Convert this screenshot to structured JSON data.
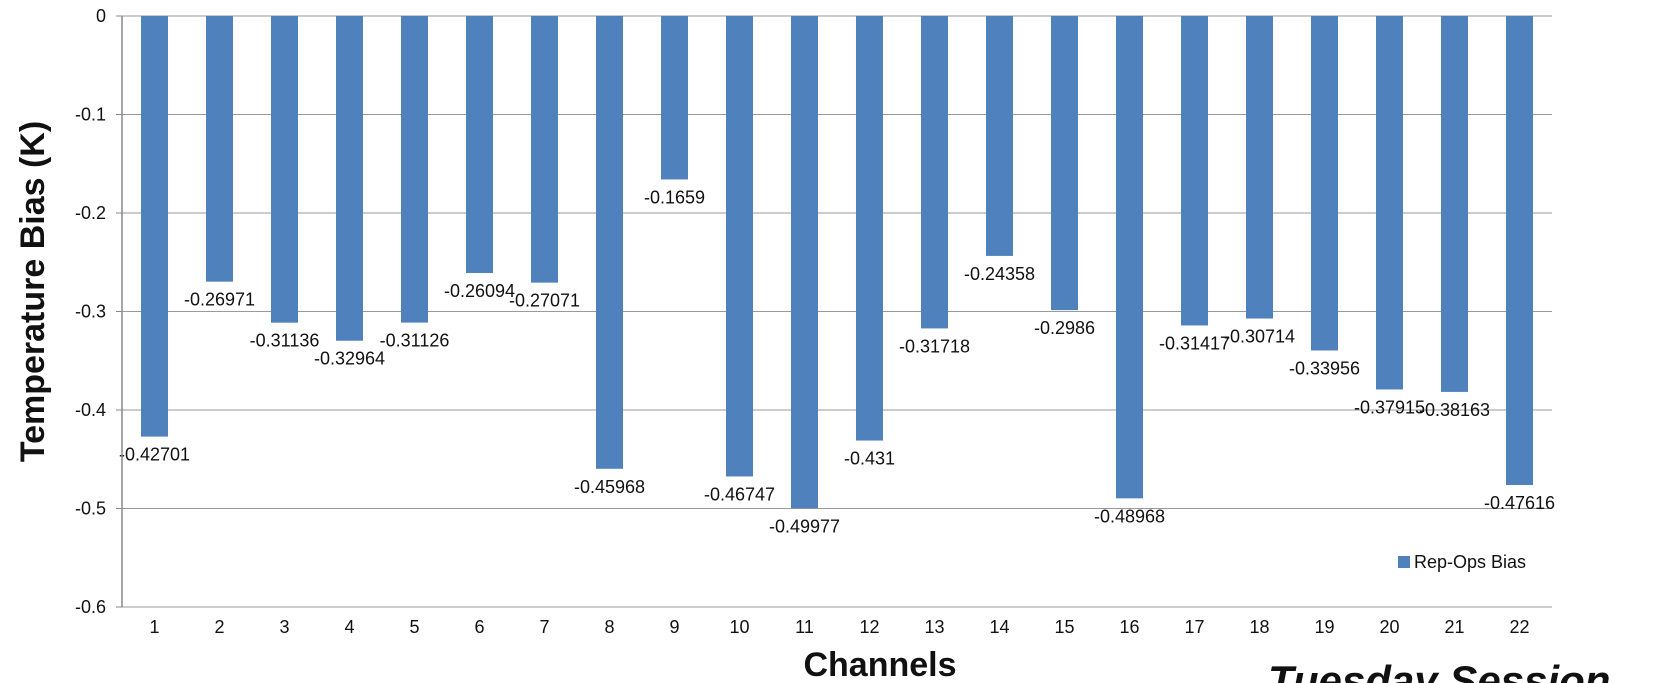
{
  "chart_data": {
    "type": "bar",
    "categories": [
      "1",
      "2",
      "3",
      "4",
      "5",
      "6",
      "7",
      "8",
      "9",
      "10",
      "11",
      "12",
      "13",
      "14",
      "15",
      "16",
      "17",
      "18",
      "19",
      "20",
      "21",
      "22"
    ],
    "series": [
      {
        "name": "Rep-Ops Bias",
        "values": [
          -0.42701,
          -0.26971,
          -0.31136,
          -0.32964,
          -0.31126,
          -0.26094,
          -0.27071,
          -0.45968,
          -0.1659,
          -0.46747,
          -0.49977,
          -0.431,
          -0.31718,
          -0.24358,
          -0.2986,
          -0.48968,
          -0.31417,
          -0.30714,
          -0.33956,
          -0.37915,
          -0.38163,
          -0.47616
        ],
        "labels": [
          "-0.42701",
          "-0.26971",
          "-0.31136",
          "-0.32964",
          "-0.31126",
          "-0.26094",
          "-0.27071",
          "-0.45968",
          "-0.1659",
          "-0.46747",
          "-0.49977",
          "-0.431",
          "-0.31718",
          "-0.24358",
          "-0.2986",
          "-0.48968",
          "-0.31417",
          "-0.30714",
          "-0.33956",
          "-0.37915",
          "-0.38163",
          "-0.47616"
        ],
        "color": "#4F81BD"
      }
    ],
    "xlabel": "Channels",
    "ylabel": "Temperature Bias (K)",
    "ylim": [
      -0.6,
      0
    ],
    "yticks": [
      "0",
      "-0.1",
      "-0.2",
      "-0.3",
      "-0.4",
      "-0.5",
      "-0.6"
    ],
    "ytick_values": [
      0,
      -0.1,
      -0.2,
      -0.3,
      -0.4,
      -0.5,
      -0.6
    ],
    "grid": true,
    "legend": "bottom-right",
    "annotation": "Tuesday Session"
  }
}
